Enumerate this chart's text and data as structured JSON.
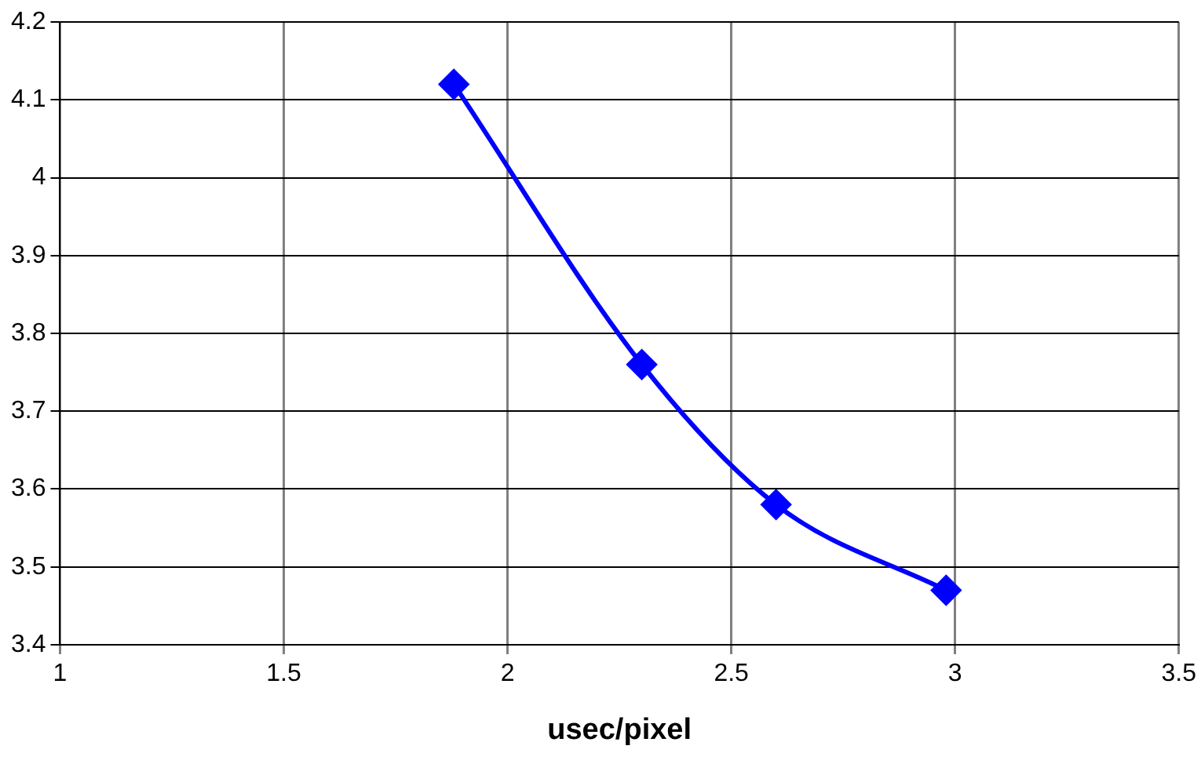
{
  "chart_data": {
    "type": "line",
    "xlabel": "usec/pixel",
    "x": [
      1.88,
      2.3,
      2.6,
      2.98
    ],
    "series": [
      {
        "color": "#0000ff",
        "values": [
          4.12,
          3.76,
          3.58,
          3.47
        ]
      }
    ],
    "xlim": [
      1,
      3.5
    ],
    "xticks": [
      1,
      1.5,
      2,
      2.5,
      3,
      3.5
    ],
    "ylim": [
      3.4,
      4.2
    ],
    "yticks": [
      3.4,
      3.5,
      3.6,
      3.7,
      3.8,
      3.9,
      4,
      4.1,
      4.2
    ],
    "grid": true,
    "legend": false,
    "marker": "diamond",
    "line_style": "solid"
  }
}
